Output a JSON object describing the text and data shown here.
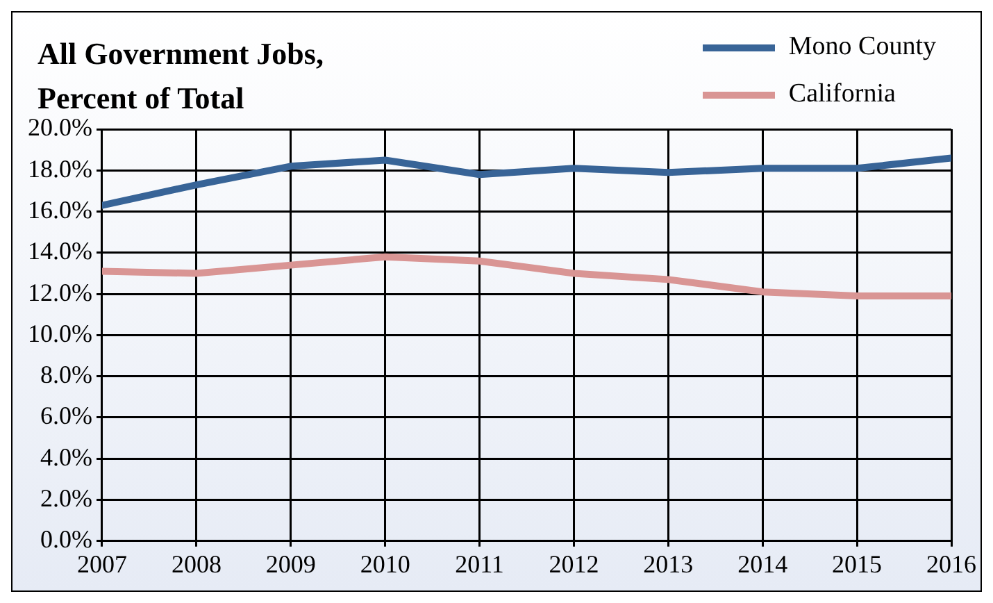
{
  "chart_data": {
    "type": "line",
    "title": "All Government Jobs,\nPercent of Total",
    "x": [
      2007,
      2008,
      2009,
      2010,
      2011,
      2012,
      2013,
      2014,
      2015,
      2016
    ],
    "series": [
      {
        "name": "Mono County",
        "color": "#386497",
        "values": [
          16.3,
          17.3,
          18.2,
          18.5,
          17.8,
          18.1,
          17.9,
          18.1,
          18.1,
          18.6
        ]
      },
      {
        "name": "California",
        "color": "#d99594",
        "values": [
          13.1,
          13.0,
          13.4,
          13.8,
          13.6,
          13.0,
          12.7,
          12.1,
          11.9,
          11.9
        ]
      }
    ],
    "xlim": [
      2007,
      2016
    ],
    "xticks": [
      2007,
      2008,
      2009,
      2010,
      2011,
      2012,
      2013,
      2014,
      2015,
      2016
    ],
    "ylim": [
      0,
      20
    ],
    "yticks": [
      {
        "value": 0,
        "label": "0.0%"
      },
      {
        "value": 2,
        "label": "2.0%"
      },
      {
        "value": 4,
        "label": "4.0%"
      },
      {
        "value": 6,
        "label": "6.0%"
      },
      {
        "value": 8,
        "label": "8.0%"
      },
      {
        "value": 10,
        "label": "10.0%"
      },
      {
        "value": 12,
        "label": "12.0%"
      },
      {
        "value": 14,
        "label": "14.0%"
      },
      {
        "value": 16,
        "label": "16.0%"
      },
      {
        "value": 18,
        "label": "18.0%"
      },
      {
        "value": 20,
        "label": "20.0%"
      }
    ],
    "grid": true,
    "legend": "top right",
    "marker": "none",
    "line_style": "solid"
  }
}
